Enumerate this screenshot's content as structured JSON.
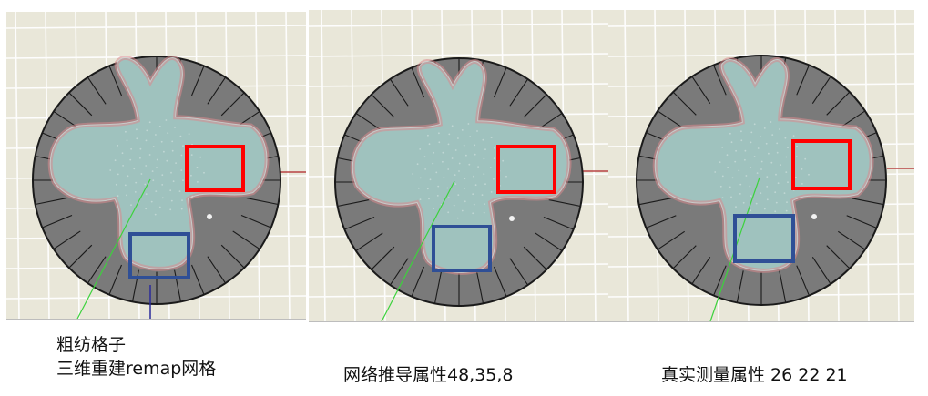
{
  "panels": [
    {
      "caption_lines": [
        "粗纺格子",
        "三维重建remap网格"
      ]
    },
    {
      "caption_lines": [
        "网络推导属性48,35,8"
      ]
    },
    {
      "caption_lines": [
        "真实测量属性 26 22 21"
      ]
    }
  ],
  "colors": {
    "background": "#e9e7d9",
    "grid": "#ffffff",
    "disk": "#7a7a7a",
    "disk_edge": "#1a1a1a",
    "mesh": "#9fc2be",
    "mesh_edge": "#d98a8e",
    "red_box": "#ff0000",
    "blue_box": "#2f4f96",
    "axis_green": "#3cd23c",
    "axis_blue": "#2a2a9a",
    "axis_red": "#b84444"
  },
  "icons": [
    "red-highlight-box",
    "blue-highlight-box"
  ]
}
